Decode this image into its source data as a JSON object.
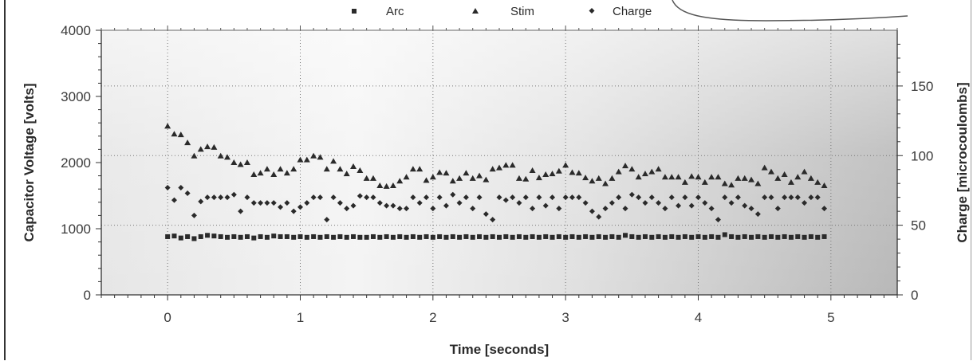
{
  "chart_data": {
    "type": "scatter",
    "xlabel": "Time [seconds]",
    "ylabel": "Capacitor Voltage [volts]",
    "y2label": "Charge [microcoulombs]",
    "xlim": [
      -0.5,
      5.5
    ],
    "ylim": [
      0,
      4000
    ],
    "y2lim": [
      0,
      190
    ],
    "x_ticks": [
      "0",
      "1",
      "2",
      "3",
      "4",
      "5"
    ],
    "y_ticks": [
      "0",
      "1000",
      "2000",
      "3000",
      "4000"
    ],
    "y2_ticks": [
      "0",
      "50",
      "100",
      "150"
    ],
    "grid": true,
    "legend_position": "top-center",
    "background": "#e4e4e4",
    "series": [
      {
        "name": "Arc",
        "marker": "square",
        "axis": "left",
        "color": "#2a2a2a",
        "points": [
          [
            0.0,
            880
          ],
          [
            0.05,
            890
          ],
          [
            0.1,
            860
          ],
          [
            0.15,
            880
          ],
          [
            0.2,
            850
          ],
          [
            0.25,
            880
          ],
          [
            0.3,
            900
          ],
          [
            0.35,
            890
          ],
          [
            0.4,
            880
          ],
          [
            0.45,
            870
          ],
          [
            0.5,
            880
          ],
          [
            0.55,
            870
          ],
          [
            0.6,
            880
          ],
          [
            0.65,
            860
          ],
          [
            0.7,
            880
          ],
          [
            0.75,
            870
          ],
          [
            0.8,
            890
          ],
          [
            0.85,
            880
          ],
          [
            0.9,
            880
          ],
          [
            0.95,
            870
          ],
          [
            1.0,
            880
          ],
          [
            1.05,
            870
          ],
          [
            1.1,
            880
          ],
          [
            1.15,
            870
          ],
          [
            1.2,
            880
          ],
          [
            1.25,
            870
          ],
          [
            1.3,
            880
          ],
          [
            1.35,
            870
          ],
          [
            1.4,
            880
          ],
          [
            1.45,
            870
          ],
          [
            1.5,
            870
          ],
          [
            1.55,
            880
          ],
          [
            1.6,
            870
          ],
          [
            1.65,
            880
          ],
          [
            1.7,
            870
          ],
          [
            1.75,
            880
          ],
          [
            1.8,
            870
          ],
          [
            1.85,
            880
          ],
          [
            1.9,
            870
          ],
          [
            1.95,
            880
          ],
          [
            2.0,
            870
          ],
          [
            2.05,
            880
          ],
          [
            2.1,
            870
          ],
          [
            2.15,
            880
          ],
          [
            2.2,
            870
          ],
          [
            2.25,
            880
          ],
          [
            2.3,
            870
          ],
          [
            2.35,
            880
          ],
          [
            2.4,
            870
          ],
          [
            2.45,
            880
          ],
          [
            2.5,
            870
          ],
          [
            2.55,
            880
          ],
          [
            2.6,
            870
          ],
          [
            2.65,
            880
          ],
          [
            2.7,
            870
          ],
          [
            2.75,
            880
          ],
          [
            2.8,
            870
          ],
          [
            2.85,
            880
          ],
          [
            2.9,
            870
          ],
          [
            2.95,
            880
          ],
          [
            3.0,
            870
          ],
          [
            3.05,
            880
          ],
          [
            3.1,
            870
          ],
          [
            3.15,
            880
          ],
          [
            3.2,
            870
          ],
          [
            3.25,
            880
          ],
          [
            3.3,
            870
          ],
          [
            3.35,
            880
          ],
          [
            3.4,
            870
          ],
          [
            3.45,
            900
          ],
          [
            3.5,
            880
          ],
          [
            3.55,
            870
          ],
          [
            3.6,
            880
          ],
          [
            3.65,
            870
          ],
          [
            3.7,
            880
          ],
          [
            3.75,
            870
          ],
          [
            3.8,
            880
          ],
          [
            3.85,
            870
          ],
          [
            3.9,
            880
          ],
          [
            3.95,
            870
          ],
          [
            4.0,
            880
          ],
          [
            4.05,
            870
          ],
          [
            4.1,
            880
          ],
          [
            4.15,
            870
          ],
          [
            4.2,
            910
          ],
          [
            4.25,
            880
          ],
          [
            4.3,
            870
          ],
          [
            4.35,
            880
          ],
          [
            4.4,
            870
          ],
          [
            4.45,
            880
          ],
          [
            4.5,
            870
          ],
          [
            4.55,
            880
          ],
          [
            4.6,
            870
          ],
          [
            4.65,
            880
          ],
          [
            4.7,
            870
          ],
          [
            4.75,
            880
          ],
          [
            4.8,
            870
          ],
          [
            4.85,
            880
          ],
          [
            4.9,
            870
          ],
          [
            4.95,
            880
          ]
        ]
      },
      {
        "name": "Stim",
        "marker": "triangle",
        "axis": "left",
        "color": "#2a2a2a",
        "points": [
          [
            0.0,
            2550
          ],
          [
            0.05,
            2430
          ],
          [
            0.1,
            2420
          ],
          [
            0.15,
            2300
          ],
          [
            0.2,
            2100
          ],
          [
            0.25,
            2200
          ],
          [
            0.3,
            2240
          ],
          [
            0.35,
            2230
          ],
          [
            0.4,
            2100
          ],
          [
            0.45,
            2080
          ],
          [
            0.5,
            2000
          ],
          [
            0.55,
            1970
          ],
          [
            0.6,
            2000
          ],
          [
            0.65,
            1820
          ],
          [
            0.7,
            1840
          ],
          [
            0.75,
            1900
          ],
          [
            0.8,
            1820
          ],
          [
            0.85,
            1900
          ],
          [
            0.9,
            1840
          ],
          [
            0.95,
            1900
          ],
          [
            1.0,
            2040
          ],
          [
            1.05,
            2040
          ],
          [
            1.1,
            2100
          ],
          [
            1.15,
            2080
          ],
          [
            1.2,
            1900
          ],
          [
            1.25,
            2020
          ],
          [
            1.3,
            1900
          ],
          [
            1.35,
            1830
          ],
          [
            1.4,
            1940
          ],
          [
            1.45,
            1880
          ],
          [
            1.5,
            1760
          ],
          [
            1.55,
            1760
          ],
          [
            1.6,
            1650
          ],
          [
            1.65,
            1640
          ],
          [
            1.7,
            1650
          ],
          [
            1.75,
            1720
          ],
          [
            1.8,
            1780
          ],
          [
            1.85,
            1900
          ],
          [
            1.9,
            1900
          ],
          [
            1.95,
            1730
          ],
          [
            2.0,
            1780
          ],
          [
            2.05,
            1850
          ],
          [
            2.1,
            1840
          ],
          [
            2.15,
            1720
          ],
          [
            2.2,
            1760
          ],
          [
            2.25,
            1840
          ],
          [
            2.3,
            1760
          ],
          [
            2.35,
            1800
          ],
          [
            2.4,
            1740
          ],
          [
            2.45,
            1900
          ],
          [
            2.5,
            1920
          ],
          [
            2.55,
            1960
          ],
          [
            2.6,
            1960
          ],
          [
            2.65,
            1760
          ],
          [
            2.7,
            1750
          ],
          [
            2.75,
            1880
          ],
          [
            2.8,
            1770
          ],
          [
            2.85,
            1820
          ],
          [
            2.9,
            1830
          ],
          [
            2.95,
            1870
          ],
          [
            3.0,
            1960
          ],
          [
            3.05,
            1850
          ],
          [
            3.1,
            1840
          ],
          [
            3.15,
            1770
          ],
          [
            3.2,
            1720
          ],
          [
            3.25,
            1760
          ],
          [
            3.3,
            1680
          ],
          [
            3.35,
            1760
          ],
          [
            3.4,
            1860
          ],
          [
            3.45,
            1950
          ],
          [
            3.5,
            1900
          ],
          [
            3.55,
            1780
          ],
          [
            3.6,
            1830
          ],
          [
            3.65,
            1860
          ],
          [
            3.7,
            1900
          ],
          [
            3.75,
            1780
          ],
          [
            3.8,
            1780
          ],
          [
            3.85,
            1780
          ],
          [
            3.9,
            1700
          ],
          [
            3.95,
            1790
          ],
          [
            4.0,
            1780
          ],
          [
            4.05,
            1700
          ],
          [
            4.1,
            1780
          ],
          [
            4.15,
            1780
          ],
          [
            4.2,
            1680
          ],
          [
            4.25,
            1660
          ],
          [
            4.3,
            1760
          ],
          [
            4.35,
            1760
          ],
          [
            4.4,
            1740
          ],
          [
            4.45,
            1680
          ],
          [
            4.5,
            1920
          ],
          [
            4.55,
            1860
          ],
          [
            4.6,
            1760
          ],
          [
            4.65,
            1820
          ],
          [
            4.7,
            1700
          ],
          [
            4.75,
            1780
          ],
          [
            4.8,
            1860
          ],
          [
            4.85,
            1760
          ],
          [
            4.9,
            1700
          ],
          [
            4.95,
            1650
          ]
        ]
      },
      {
        "name": "Charge",
        "marker": "diamond",
        "axis": "right",
        "color": "#2a2a2a",
        "points": [
          [
            0.0,
            77
          ],
          [
            0.05,
            68
          ],
          [
            0.1,
            77
          ],
          [
            0.15,
            73
          ],
          [
            0.2,
            57
          ],
          [
            0.25,
            67
          ],
          [
            0.3,
            70
          ],
          [
            0.35,
            70
          ],
          [
            0.4,
            70
          ],
          [
            0.45,
            70
          ],
          [
            0.5,
            72
          ],
          [
            0.55,
            60
          ],
          [
            0.6,
            70
          ],
          [
            0.65,
            66
          ],
          [
            0.7,
            66
          ],
          [
            0.75,
            66
          ],
          [
            0.8,
            66
          ],
          [
            0.85,
            63
          ],
          [
            0.9,
            66
          ],
          [
            0.95,
            60
          ],
          [
            1.0,
            63
          ],
          [
            1.05,
            66
          ],
          [
            1.1,
            70
          ],
          [
            1.15,
            70
          ],
          [
            1.2,
            54
          ],
          [
            1.25,
            70
          ],
          [
            1.3,
            66
          ],
          [
            1.35,
            62
          ],
          [
            1.4,
            64
          ],
          [
            1.45,
            71
          ],
          [
            1.5,
            70
          ],
          [
            1.55,
            70
          ],
          [
            1.6,
            66
          ],
          [
            1.65,
            64
          ],
          [
            1.7,
            64
          ],
          [
            1.75,
            62
          ],
          [
            1.8,
            62
          ],
          [
            1.85,
            70
          ],
          [
            1.9,
            66
          ],
          [
            1.95,
            70
          ],
          [
            2.0,
            62
          ],
          [
            2.05,
            70
          ],
          [
            2.1,
            64
          ],
          [
            2.15,
            72
          ],
          [
            2.2,
            66
          ],
          [
            2.25,
            70
          ],
          [
            2.3,
            62
          ],
          [
            2.35,
            70
          ],
          [
            2.4,
            58
          ],
          [
            2.45,
            54
          ],
          [
            2.5,
            70
          ],
          [
            2.55,
            68
          ],
          [
            2.6,
            70
          ],
          [
            2.65,
            66
          ],
          [
            2.7,
            70
          ],
          [
            2.75,
            62
          ],
          [
            2.8,
            70
          ],
          [
            2.85,
            64
          ],
          [
            2.9,
            70
          ],
          [
            2.95,
            62
          ],
          [
            3.0,
            70
          ],
          [
            3.05,
            70
          ],
          [
            3.1,
            70
          ],
          [
            3.15,
            66
          ],
          [
            3.2,
            60
          ],
          [
            3.25,
            56
          ],
          [
            3.3,
            62
          ],
          [
            3.35,
            66
          ],
          [
            3.4,
            70
          ],
          [
            3.45,
            62
          ],
          [
            3.5,
            72
          ],
          [
            3.55,
            70
          ],
          [
            3.6,
            66
          ],
          [
            3.65,
            70
          ],
          [
            3.7,
            66
          ],
          [
            3.75,
            62
          ],
          [
            3.8,
            70
          ],
          [
            3.85,
            64
          ],
          [
            3.9,
            70
          ],
          [
            3.95,
            64
          ],
          [
            4.0,
            70
          ],
          [
            4.05,
            66
          ],
          [
            4.1,
            62
          ],
          [
            4.15,
            54
          ],
          [
            4.2,
            70
          ],
          [
            4.25,
            66
          ],
          [
            4.3,
            70
          ],
          [
            4.35,
            64
          ],
          [
            4.4,
            62
          ],
          [
            4.45,
            58
          ],
          [
            4.5,
            70
          ],
          [
            4.55,
            70
          ],
          [
            4.6,
            62
          ],
          [
            4.65,
            70
          ],
          [
            4.7,
            70
          ],
          [
            4.75,
            70
          ],
          [
            4.8,
            66
          ],
          [
            4.85,
            70
          ],
          [
            4.9,
            70
          ],
          [
            4.95,
            62
          ]
        ]
      }
    ]
  }
}
